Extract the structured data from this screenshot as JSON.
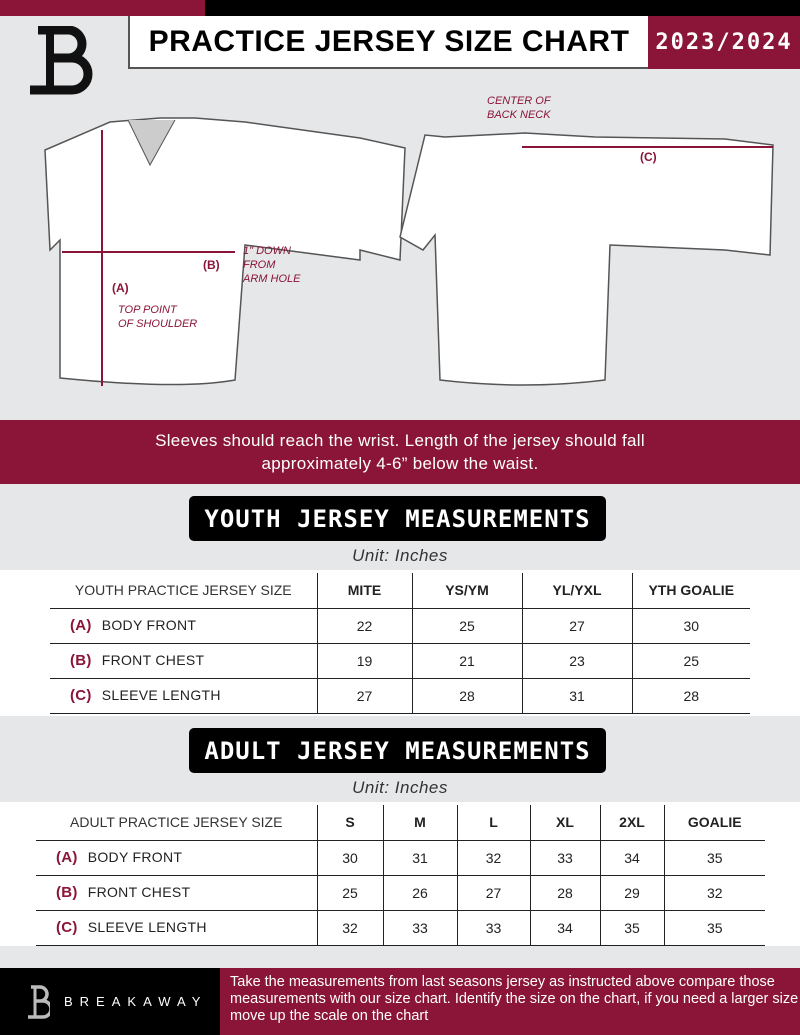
{
  "header": {
    "title": "PRACTICE JERSEY SIZE CHART",
    "season": "2023/2024",
    "logo_letter": "B"
  },
  "diagram": {
    "front_labels": {
      "a": "(A)",
      "b": "(B)",
      "top_point": "TOP POINT\nOF SHOULDER",
      "arm_hole": "1\" DOWN\nFROM\nARM HOLE"
    },
    "back_labels": {
      "c": "(C)",
      "center": "CENTER OF\nBACK NECK"
    }
  },
  "instructions": "Sleeves should reach the wrist. Length of the jersey should fall approximately 4-6” below the waist.",
  "youth": {
    "title": "YOUTH JERSEY MEASUREMENTS",
    "unit": "Unit: Inches",
    "header": [
      "YOUTH PRACTICE JERSEY SIZE",
      "MITE",
      "YS/YM",
      "YL/YXL",
      "YTH GOALIE"
    ],
    "rows": [
      {
        "letter": "(A)",
        "label": "BODY FRONT",
        "values": [
          "22",
          "25",
          "27",
          "30"
        ]
      },
      {
        "letter": "(B)",
        "label": "FRONT CHEST",
        "values": [
          "19",
          "21",
          "23",
          "25"
        ]
      },
      {
        "letter": "(C)",
        "label": "SLEEVE LENGTH",
        "values": [
          "27",
          "28",
          "31",
          "28"
        ]
      }
    ]
  },
  "adult": {
    "title": "ADULT JERSEY MEASUREMENTS",
    "unit": "Unit: Inches",
    "header": [
      "ADULT PRACTICE JERSEY SIZE",
      "S",
      "M",
      "L",
      "XL",
      "2XL",
      "GOALIE"
    ],
    "rows": [
      {
        "letter": "(A)",
        "label": "BODY FRONT",
        "values": [
          "30",
          "31",
          "32",
          "33",
          "34",
          "35"
        ]
      },
      {
        "letter": "(B)",
        "label": "FRONT CHEST",
        "values": [
          "25",
          "26",
          "27",
          "28",
          "29",
          "32"
        ]
      },
      {
        "letter": "(C)",
        "label": "SLEEVE LENGTH",
        "values": [
          "32",
          "33",
          "33",
          "34",
          "35",
          "35"
        ]
      }
    ]
  },
  "footer": {
    "brand": "BREAKAWAY",
    "text": "Take the measurements from last seasons jersey as instructed above compare those measurements  with our size chart. Identify the size on the chart, if you need a larger size move up the scale on the chart"
  },
  "colors": {
    "accent": "#8a1538",
    "background": "#e6e7e8"
  }
}
